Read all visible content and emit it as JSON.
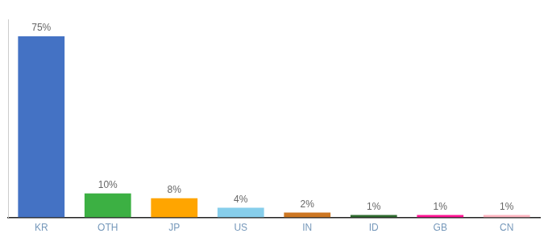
{
  "chart_data": {
    "type": "bar",
    "categories": [
      "KR",
      "OTH",
      "JP",
      "US",
      "IN",
      "ID",
      "GB",
      "CN"
    ],
    "values": [
      75,
      10,
      8,
      4,
      2,
      1,
      1,
      1
    ],
    "value_labels": [
      "75%",
      "10%",
      "8%",
      "4%",
      "2%",
      "1%",
      "1%",
      "1%"
    ],
    "colors": [
      "#4472C4",
      "#3CB043",
      "#FFA500",
      "#87CEEB",
      "#CD7722",
      "#2E6B2E",
      "#FF1493",
      "#FFB6C1"
    ],
    "ylim": [
      0,
      82
    ],
    "grid": false,
    "data_labels": true,
    "tick_labels": "x"
  }
}
